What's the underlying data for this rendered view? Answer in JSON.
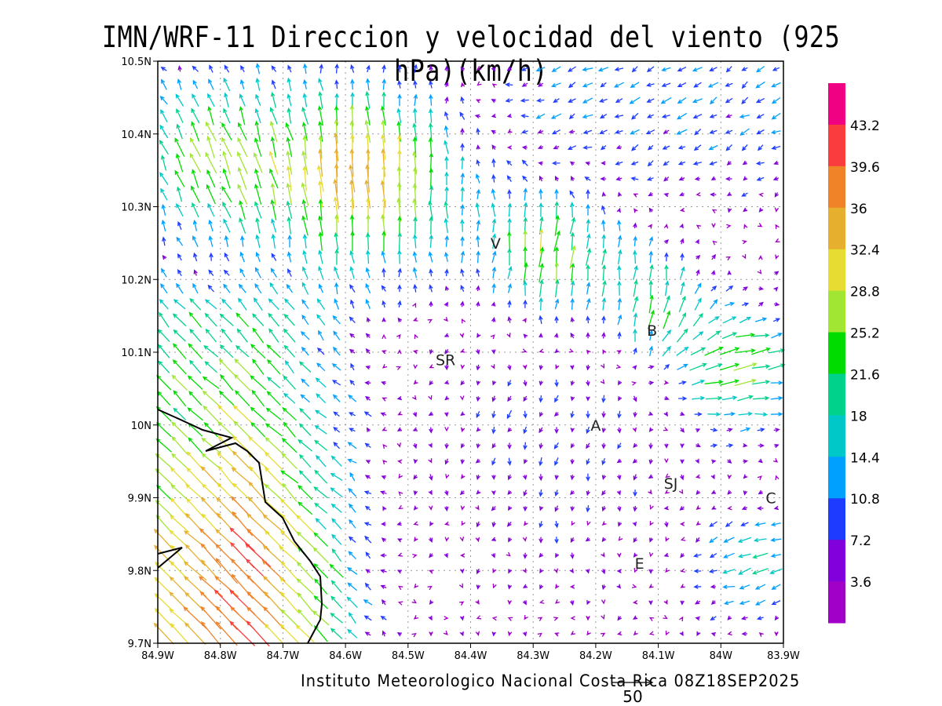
{
  "title": "IMN/WRF-11 Direccion y velocidad del viento (925 hPa)(km/h)",
  "footer": "Instituto Meteorologico Nacional Costa Rica 08Z18SEP2025",
  "reference_vector": {
    "label": "50",
    "value": 50
  },
  "chart_data": {
    "type": "vector",
    "title": "IMN/WRF-11 Direccion y velocidad del viento (925 hPa)(km/h)",
    "units": "km/h",
    "level": "925 hPa",
    "valid_time": "08Z18SEP2025",
    "lon_range": [
      -84.9,
      -83.9
    ],
    "lat_range": [
      9.7,
      10.5
    ],
    "x_ticks": [
      "84.9W",
      "84.8W",
      "84.7W",
      "84.6W",
      "84.5W",
      "84.4W",
      "84.3W",
      "84.2W",
      "84.1W",
      "84W",
      "83.9W"
    ],
    "y_ticks": [
      "10.5N",
      "10.4N",
      "10.3N",
      "10.2N",
      "10.1N",
      "10N",
      "9.9N",
      "9.8N",
      "9.7N"
    ],
    "grid": true,
    "legend_placement": "right"
  },
  "colorbar": {
    "labels": [
      "43.2",
      "39.6",
      "36",
      "32.4",
      "28.8",
      "25.2",
      "21.6",
      "18",
      "14.4",
      "10.8",
      "7.2",
      "3.6"
    ],
    "colors": [
      "#f00082",
      "#fa3c3c",
      "#f08228",
      "#e6af2d",
      "#e6dc32",
      "#a0e632",
      "#00dc00",
      "#00d28c",
      "#00c8c8",
      "#00a0ff",
      "#1e3cff",
      "#8200dc",
      "#a000c8"
    ]
  },
  "locations": [
    {
      "label": "V",
      "lon": -84.36,
      "lat": 10.25
    },
    {
      "label": "B",
      "lon": -84.11,
      "lat": 10.13
    },
    {
      "label": "SR",
      "lon": -84.44,
      "lat": 10.09
    },
    {
      "label": "A",
      "lon": -84.2,
      "lat": 10.0
    },
    {
      "label": "SJ",
      "lon": -84.08,
      "lat": 9.92
    },
    {
      "label": "C",
      "lon": -83.92,
      "lat": 9.9
    },
    {
      "label": "E",
      "lon": -84.13,
      "lat": 9.81
    }
  ]
}
